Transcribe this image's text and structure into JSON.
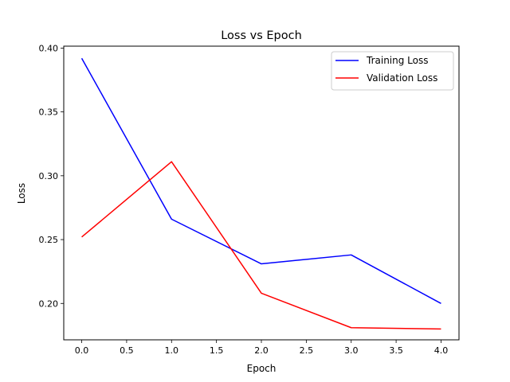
{
  "chart_data": {
    "type": "line",
    "title": "Loss vs Epoch",
    "xlabel": "Epoch",
    "ylabel": "Loss",
    "x": [
      0,
      1,
      2,
      3,
      4
    ],
    "xlim": [
      -0.2,
      4.2
    ],
    "ylim": [
      0.1715,
      0.4015
    ],
    "x_ticks": [
      0.0,
      0.5,
      1.0,
      1.5,
      2.0,
      2.5,
      3.0,
      3.5,
      4.0
    ],
    "x_tick_labels": [
      "0.0",
      "0.5",
      "1.0",
      "1.5",
      "2.0",
      "2.5",
      "3.0",
      "3.5",
      "4.0"
    ],
    "y_ticks": [
      0.2,
      0.25,
      0.3,
      0.35,
      0.4
    ],
    "y_tick_labels": [
      "0.20",
      "0.25",
      "0.30",
      "0.35",
      "0.40"
    ],
    "grid": false,
    "legend_position": "top-right",
    "series": [
      {
        "name": "Training Loss",
        "color": "#0000ff",
        "values": [
          0.392,
          0.266,
          0.231,
          0.238,
          0.2
        ]
      },
      {
        "name": "Validation Loss",
        "color": "#ff0000",
        "values": [
          0.252,
          0.311,
          0.208,
          0.181,
          0.18
        ]
      }
    ]
  }
}
